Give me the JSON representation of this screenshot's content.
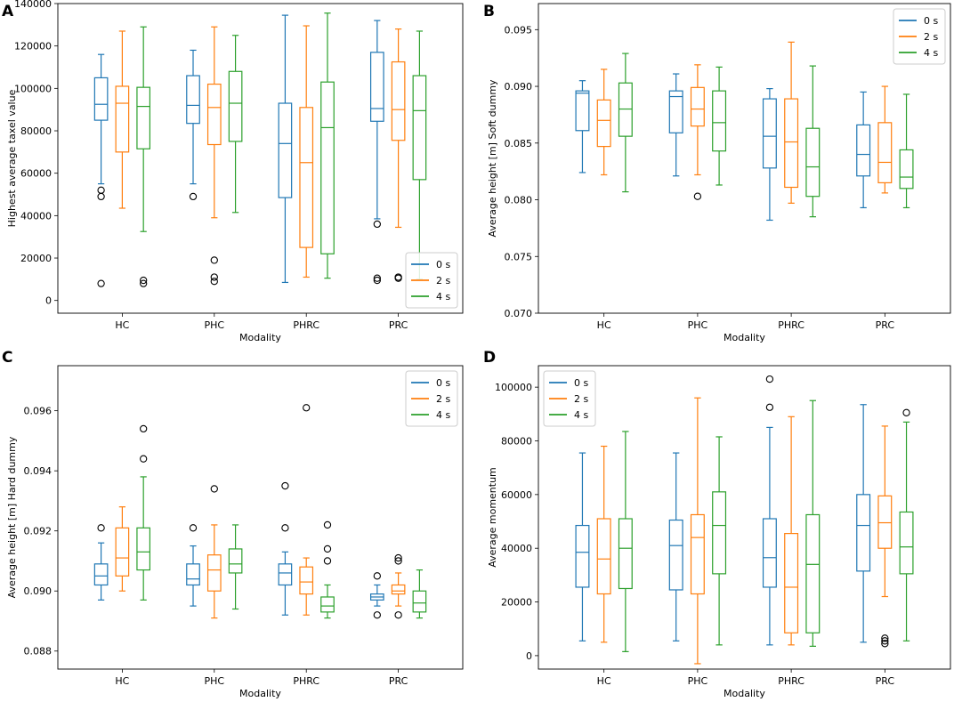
{
  "colors": {
    "s0": "#1f77b4",
    "s2": "#ff7f0e",
    "s4": "#2ca02c",
    "axis": "#000000"
  },
  "chart_data": [
    {
      "panel_label": "A",
      "type": "boxplot",
      "xlabel": "Modality",
      "ylabel": "Highest average taxel value",
      "categories": [
        "HC",
        "PHC",
        "PHRC",
        "PRC"
      ],
      "ylim": [
        -6000,
        140000
      ],
      "yticks": [
        0,
        20000,
        40000,
        60000,
        80000,
        100000,
        120000,
        140000
      ],
      "ytick_labels": [
        "0",
        "20000",
        "40000",
        "60000",
        "80000",
        "100000",
        "120000",
        "140000"
      ],
      "legend": {
        "position": "lower-right",
        "entries": [
          "0 s",
          "2 s",
          "4 s"
        ]
      },
      "series": [
        {
          "name": "0 s",
          "color": "#1f77b4",
          "boxes": [
            {
              "whislo": 55000,
              "q1": 85000,
              "med": 92500,
              "q3": 105000,
              "whishi": 116000,
              "fliers": [
                49000,
                52000,
                8000
              ]
            },
            {
              "whislo": 55000,
              "q1": 83500,
              "med": 92000,
              "q3": 106000,
              "whishi": 118000,
              "fliers": [
                49000
              ]
            },
            {
              "whislo": 8500,
              "q1": 48500,
              "med": 74000,
              "q3": 93000,
              "whishi": 134500,
              "fliers": []
            },
            {
              "whislo": 38500,
              "q1": 84500,
              "med": 90500,
              "q3": 117000,
              "whishi": 132000,
              "fliers": [
                36000,
                9500,
                10500
              ]
            }
          ]
        },
        {
          "name": "2 s",
          "color": "#ff7f0e",
          "boxes": [
            {
              "whislo": 43500,
              "q1": 70000,
              "med": 93000,
              "q3": 101000,
              "whishi": 127000,
              "fliers": []
            },
            {
              "whislo": 39000,
              "q1": 73500,
              "med": 91000,
              "q3": 102000,
              "whishi": 129000,
              "fliers": [
                19000,
                11000,
                9000
              ]
            },
            {
              "whislo": 11000,
              "q1": 25000,
              "med": 65000,
              "q3": 91000,
              "whishi": 129500,
              "fliers": []
            },
            {
              "whislo": 34500,
              "q1": 75500,
              "med": 90000,
              "q3": 112500,
              "whishi": 128000,
              "fliers": [
                10500,
                11000
              ]
            }
          ]
        },
        {
          "name": "4 s",
          "color": "#2ca02c",
          "boxes": [
            {
              "whislo": 32500,
              "q1": 71500,
              "med": 91500,
              "q3": 100500,
              "whishi": 129000,
              "fliers": [
                8000,
                9500
              ]
            },
            {
              "whislo": 41500,
              "q1": 75000,
              "med": 93000,
              "q3": 108000,
              "whishi": 125000,
              "fliers": []
            },
            {
              "whislo": 10500,
              "q1": 22000,
              "med": 81500,
              "q3": 103000,
              "whishi": 135500,
              "fliers": []
            },
            {
              "whislo": 10000,
              "q1": 57000,
              "med": 89500,
              "q3": 106000,
              "whishi": 127000,
              "fliers": []
            }
          ]
        }
      ]
    },
    {
      "panel_label": "B",
      "type": "boxplot",
      "xlabel": "Modality",
      "ylabel": "Average height [m] Soft dummy",
      "categories": [
        "HC",
        "PHC",
        "PHRC",
        "PRC"
      ],
      "ylim": [
        0.07,
        0.0973
      ],
      "yticks": [
        0.07,
        0.075,
        0.08,
        0.085,
        0.09,
        0.095
      ],
      "ytick_labels": [
        "0.070",
        "0.075",
        "0.080",
        "0.085",
        "0.090",
        "0.095"
      ],
      "legend": {
        "position": "top-right",
        "entries": [
          "0 s",
          "2 s",
          "4 s"
        ]
      },
      "series": [
        {
          "name": "0 s",
          "color": "#1f77b4",
          "boxes": [
            {
              "whislo": 0.0824,
              "q1": 0.0861,
              "med": 0.0894,
              "q3": 0.0896,
              "whishi": 0.0905,
              "fliers": []
            },
            {
              "whislo": 0.0821,
              "q1": 0.0859,
              "med": 0.0891,
              "q3": 0.0896,
              "whishi": 0.0911,
              "fliers": []
            },
            {
              "whislo": 0.0782,
              "q1": 0.0828,
              "med": 0.0856,
              "q3": 0.0889,
              "whishi": 0.0898,
              "fliers": []
            },
            {
              "whislo": 0.0793,
              "q1": 0.0821,
              "med": 0.084,
              "q3": 0.0866,
              "whishi": 0.0895,
              "fliers": []
            }
          ]
        },
        {
          "name": "2 s",
          "color": "#ff7f0e",
          "boxes": [
            {
              "whislo": 0.0822,
              "q1": 0.0847,
              "med": 0.087,
              "q3": 0.0888,
              "whishi": 0.0915,
              "fliers": []
            },
            {
              "whislo": 0.0822,
              "q1": 0.0865,
              "med": 0.088,
              "q3": 0.0899,
              "whishi": 0.0919,
              "fliers": [
                0.0803
              ]
            },
            {
              "whislo": 0.0797,
              "q1": 0.0811,
              "med": 0.0851,
              "q3": 0.0889,
              "whishi": 0.0939,
              "fliers": []
            },
            {
              "whislo": 0.0806,
              "q1": 0.0815,
              "med": 0.0833,
              "q3": 0.0868,
              "whishi": 0.09,
              "fliers": []
            }
          ]
        },
        {
          "name": "4 s",
          "color": "#2ca02c",
          "boxes": [
            {
              "whislo": 0.0807,
              "q1": 0.0856,
              "med": 0.088,
              "q3": 0.0903,
              "whishi": 0.0929,
              "fliers": []
            },
            {
              "whislo": 0.0813,
              "q1": 0.0843,
              "med": 0.0868,
              "q3": 0.0896,
              "whishi": 0.0917,
              "fliers": []
            },
            {
              "whislo": 0.0785,
              "q1": 0.0803,
              "med": 0.0829,
              "q3": 0.0863,
              "whishi": 0.0918,
              "fliers": []
            },
            {
              "whislo": 0.0793,
              "q1": 0.081,
              "med": 0.082,
              "q3": 0.0844,
              "whishi": 0.0893,
              "fliers": []
            }
          ]
        }
      ]
    },
    {
      "panel_label": "C",
      "type": "boxplot",
      "xlabel": "Modality",
      "ylabel": "Average height [m] Hard dummy",
      "categories": [
        "HC",
        "PHC",
        "PHRC",
        "PRC"
      ],
      "ylim": [
        0.0874,
        0.0975
      ],
      "yticks": [
        0.088,
        0.09,
        0.092,
        0.094,
        0.096
      ],
      "ytick_labels": [
        "0.088",
        "0.090",
        "0.092",
        "0.094",
        "0.096"
      ],
      "legend": {
        "position": "top-right",
        "entries": [
          "0 s",
          "2 s",
          "4 s"
        ]
      },
      "series": [
        {
          "name": "0 s",
          "color": "#1f77b4",
          "boxes": [
            {
              "whislo": 0.0897,
              "q1": 0.0902,
              "med": 0.0905,
              "q3": 0.0909,
              "whishi": 0.0916,
              "fliers": [
                0.0921
              ]
            },
            {
              "whislo": 0.0895,
              "q1": 0.0902,
              "med": 0.0904,
              "q3": 0.0909,
              "whishi": 0.0915,
              "fliers": [
                0.0921
              ]
            },
            {
              "whislo": 0.0892,
              "q1": 0.0902,
              "med": 0.0906,
              "q3": 0.0909,
              "whishi": 0.0913,
              "fliers": [
                0.0935,
                0.0921
              ]
            },
            {
              "whislo": 0.0895,
              "q1": 0.0897,
              "med": 0.0898,
              "q3": 0.0899,
              "whishi": 0.0902,
              "fliers": [
                0.0905,
                0.0892
              ]
            }
          ]
        },
        {
          "name": "2 s",
          "color": "#ff7f0e",
          "boxes": [
            {
              "whislo": 0.09,
              "q1": 0.0905,
              "med": 0.0911,
              "q3": 0.0921,
              "whishi": 0.0928,
              "fliers": []
            },
            {
              "whislo": 0.0891,
              "q1": 0.09,
              "med": 0.0907,
              "q3": 0.0912,
              "whishi": 0.0922,
              "fliers": [
                0.0934
              ]
            },
            {
              "whislo": 0.0892,
              "q1": 0.0899,
              "med": 0.0903,
              "q3": 0.0908,
              "whishi": 0.0911,
              "fliers": [
                0.0961
              ]
            },
            {
              "whislo": 0.0895,
              "q1": 0.0899,
              "med": 0.09,
              "q3": 0.0902,
              "whishi": 0.0906,
              "fliers": [
                0.0911,
                0.091,
                0.0892
              ]
            }
          ]
        },
        {
          "name": "4 s",
          "color": "#2ca02c",
          "boxes": [
            {
              "whislo": 0.0897,
              "q1": 0.0907,
              "med": 0.0913,
              "q3": 0.0921,
              "whishi": 0.0938,
              "fliers": [
                0.0954,
                0.0944
              ]
            },
            {
              "whislo": 0.0894,
              "q1": 0.0906,
              "med": 0.0909,
              "q3": 0.0914,
              "whishi": 0.0922,
              "fliers": []
            },
            {
              "whislo": 0.0891,
              "q1": 0.0893,
              "med": 0.0895,
              "q3": 0.0898,
              "whishi": 0.0902,
              "fliers": [
                0.0922,
                0.0914,
                0.091
              ]
            },
            {
              "whislo": 0.0891,
              "q1": 0.0893,
              "med": 0.0896,
              "q3": 0.09,
              "whishi": 0.0907,
              "fliers": []
            }
          ]
        }
      ]
    },
    {
      "panel_label": "D",
      "type": "boxplot",
      "xlabel": "Modality",
      "ylabel": "Average momentum",
      "categories": [
        "HC",
        "PHC",
        "PHRC",
        "PRC"
      ],
      "ylim": [
        -5000,
        108000
      ],
      "yticks": [
        0,
        20000,
        40000,
        60000,
        80000,
        100000
      ],
      "ytick_labels": [
        "0",
        "20000",
        "40000",
        "60000",
        "80000",
        "100000"
      ],
      "legend": {
        "position": "top-left",
        "entries": [
          "0 s",
          "2 s",
          "4 s"
        ]
      },
      "series": [
        {
          "name": "0 s",
          "color": "#1f77b4",
          "boxes": [
            {
              "whislo": 5500,
              "q1": 25500,
              "med": 38500,
              "q3": 48500,
              "whishi": 75500,
              "fliers": []
            },
            {
              "whislo": 5500,
              "q1": 24500,
              "med": 41000,
              "q3": 50500,
              "whishi": 75500,
              "fliers": []
            },
            {
              "whislo": 4000,
              "q1": 25500,
              "med": 36500,
              "q3": 51000,
              "whishi": 85000,
              "fliers": [
                103000,
                92500
              ]
            },
            {
              "whislo": 5000,
              "q1": 31500,
              "med": 48500,
              "q3": 60000,
              "whishi": 93500,
              "fliers": []
            }
          ]
        },
        {
          "name": "2 s",
          "color": "#ff7f0e",
          "boxes": [
            {
              "whislo": 5000,
              "q1": 23000,
              "med": 36000,
              "q3": 51000,
              "whishi": 78000,
              "fliers": []
            },
            {
              "whislo": -3000,
              "q1": 23000,
              "med": 44000,
              "q3": 52500,
              "whishi": 96000,
              "fliers": []
            },
            {
              "whislo": 4000,
              "q1": 8500,
              "med": 25500,
              "q3": 45500,
              "whishi": 89000,
              "fliers": []
            },
            {
              "whislo": 22000,
              "q1": 40000,
              "med": 49500,
              "q3": 59500,
              "whishi": 85500,
              "fliers": [
                6500,
                5500,
                4500
              ]
            }
          ]
        },
        {
          "name": "4 s",
          "color": "#2ca02c",
          "boxes": [
            {
              "whislo": 1500,
              "q1": 25000,
              "med": 40000,
              "q3": 51000,
              "whishi": 83500,
              "fliers": []
            },
            {
              "whislo": 4000,
              "q1": 30500,
              "med": 48500,
              "q3": 61000,
              "whishi": 81500,
              "fliers": []
            },
            {
              "whislo": 3500,
              "q1": 8500,
              "med": 34000,
              "q3": 52500,
              "whishi": 95000,
              "fliers": []
            },
            {
              "whislo": 5500,
              "q1": 30500,
              "med": 40500,
              "q3": 53500,
              "whishi": 87000,
              "fliers": [
                90500
              ]
            }
          ]
        }
      ]
    }
  ]
}
